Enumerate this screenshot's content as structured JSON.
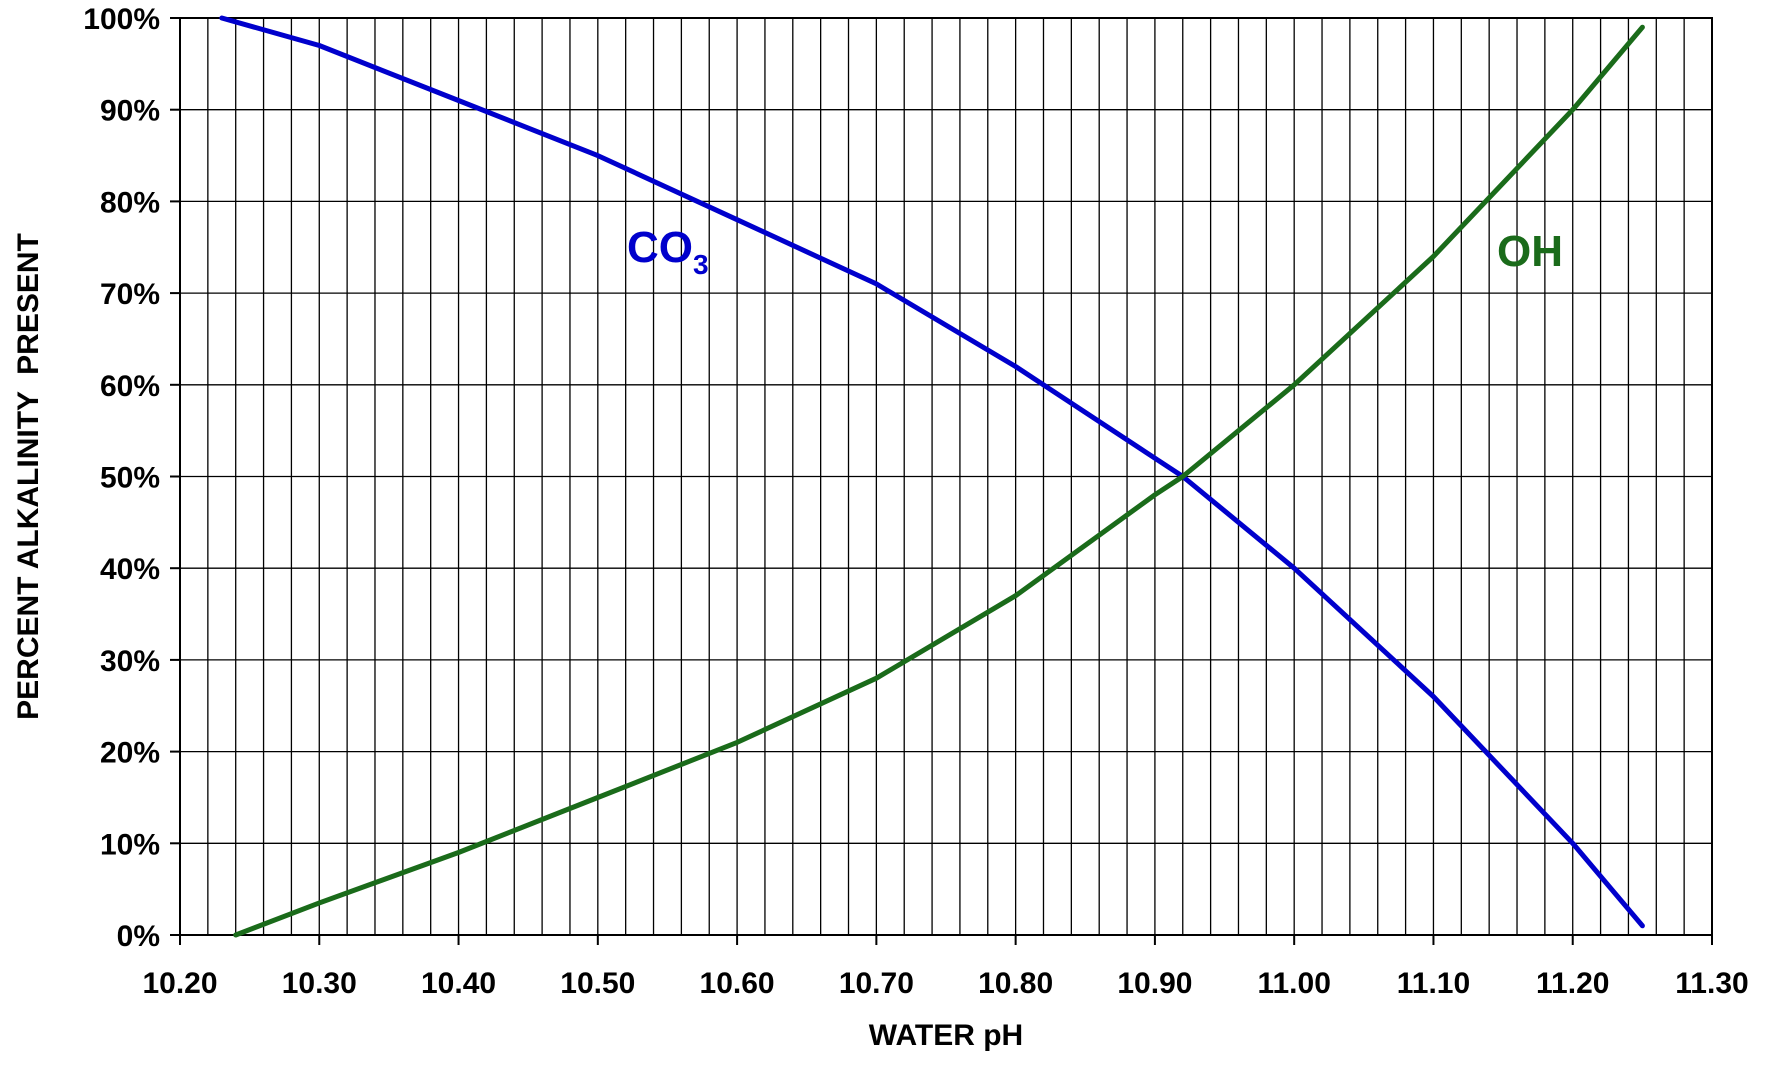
{
  "chart_data": {
    "type": "line",
    "xlabel": "WATER pH",
    "ylabel": "PERCENT ALKALINITY  PRESENT",
    "xlim": [
      10.2,
      11.3
    ],
    "ylim": [
      0,
      100
    ],
    "x_ticks": [
      "10.20",
      "10.30",
      "10.40",
      "10.50",
      "10.60",
      "10.70",
      "10.80",
      "10.90",
      "11.00",
      "11.10",
      "11.20",
      "11.30"
    ],
    "y_ticks": [
      "0%",
      "10%",
      "20%",
      "30%",
      "40%",
      "50%",
      "60%",
      "70%",
      "80%",
      "90%",
      "100%"
    ],
    "grid": {
      "vertical_lines": true,
      "horizontal_lines": true
    },
    "series": [
      {
        "name": "CO3",
        "label_main": "CO",
        "label_sub": "3",
        "color": "#0000cc",
        "x": [
          10.23,
          10.3,
          10.4,
          10.5,
          10.6,
          10.7,
          10.8,
          10.9,
          10.92,
          11.0,
          11.1,
          11.2,
          11.25
        ],
        "y": [
          100,
          97,
          91,
          85,
          78,
          71,
          62,
          52,
          50,
          40,
          26,
          10,
          1
        ]
      },
      {
        "name": "OH",
        "label_main": "OH",
        "color": "#1a6b1a",
        "x": [
          10.24,
          10.3,
          10.4,
          10.5,
          10.6,
          10.7,
          10.8,
          10.9,
          10.92,
          11.0,
          11.1,
          11.2,
          11.25
        ],
        "y": [
          0,
          3.5,
          9,
          15,
          21,
          28,
          37,
          48,
          50,
          60,
          74,
          90,
          99
        ]
      }
    ]
  }
}
